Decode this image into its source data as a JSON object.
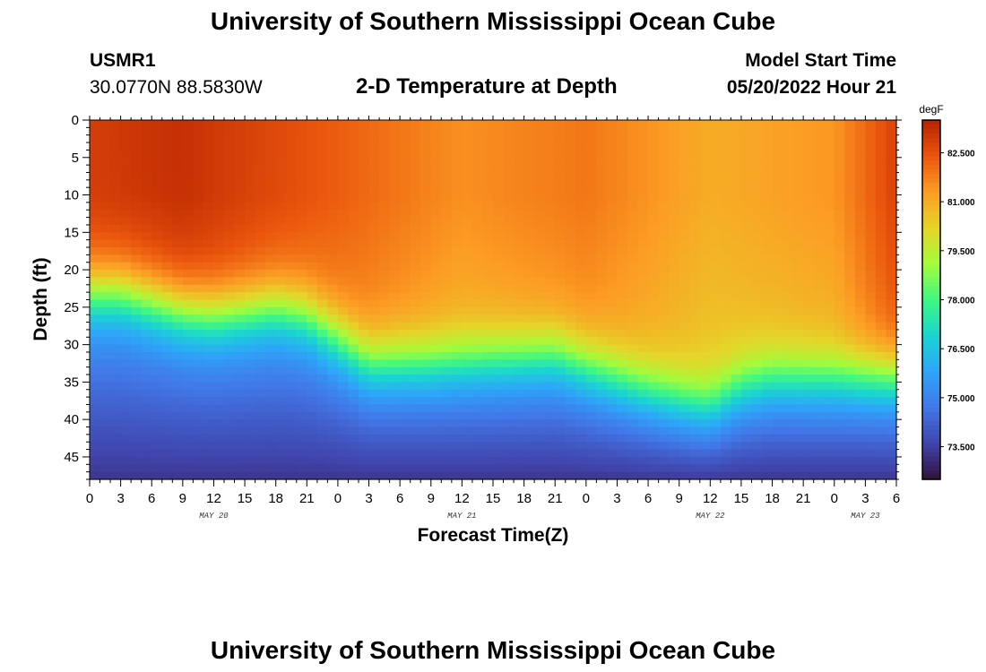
{
  "header": {
    "title": "University of Southern Mississippi Ocean Cube",
    "station_id": "USMR1",
    "station_coords": "30.0770N  88.5830W",
    "plot_title": "2-D Temperature at Depth",
    "model_start_label": "Model Start Time",
    "model_start_value": "05/20/2022 Hour 21"
  },
  "footer": {
    "title": "University of Southern Mississippi Ocean Cube"
  },
  "chart_data": {
    "type": "heatmap",
    "title": "2-D Temperature at Depth",
    "xlabel": "Forecast Time(Z)",
    "ylabel": "Depth (ft)",
    "x_range_hours": [
      0,
      78
    ],
    "y_range_ft": [
      0,
      48
    ],
    "x_ticks": [
      {
        "hour": 0,
        "label": "0"
      },
      {
        "hour": 3,
        "label": "3"
      },
      {
        "hour": 6,
        "label": "6"
      },
      {
        "hour": 9,
        "label": "9"
      },
      {
        "hour": 12,
        "label": "12"
      },
      {
        "hour": 15,
        "label": "15"
      },
      {
        "hour": 18,
        "label": "18"
      },
      {
        "hour": 21,
        "label": "21"
      },
      {
        "hour": 24,
        "label": "0"
      },
      {
        "hour": 27,
        "label": "3"
      },
      {
        "hour": 30,
        "label": "6"
      },
      {
        "hour": 33,
        "label": "9"
      },
      {
        "hour": 36,
        "label": "12"
      },
      {
        "hour": 39,
        "label": "15"
      },
      {
        "hour": 42,
        "label": "18"
      },
      {
        "hour": 45,
        "label": "21"
      },
      {
        "hour": 48,
        "label": "0"
      },
      {
        "hour": 51,
        "label": "3"
      },
      {
        "hour": 54,
        "label": "6"
      },
      {
        "hour": 57,
        "label": "9"
      },
      {
        "hour": 60,
        "label": "12"
      },
      {
        "hour": 63,
        "label": "15"
      },
      {
        "hour": 66,
        "label": "18"
      },
      {
        "hour": 69,
        "label": "21"
      },
      {
        "hour": 72,
        "label": "0"
      },
      {
        "hour": 75,
        "label": "3"
      },
      {
        "hour": 78,
        "label": "6"
      }
    ],
    "date_labels": [
      {
        "hour": 12,
        "label": "MAY 20"
      },
      {
        "hour": 36,
        "label": "MAY 21"
      },
      {
        "hour": 60,
        "label": "MAY 22"
      },
      {
        "hour": 75,
        "label": "MAY 23"
      }
    ],
    "y_ticks": [
      0,
      5,
      10,
      15,
      20,
      25,
      30,
      35,
      40,
      45
    ],
    "colorbar": {
      "unit": "degF",
      "range": [
        72.5,
        83.5
      ],
      "ticks": [
        "82.500",
        "81.000",
        "79.500",
        "78.000",
        "76.500",
        "75.000",
        "73.500"
      ]
    },
    "thermocline_depth_ft": [
      {
        "hour": 0,
        "depth": 23
      },
      {
        "hour": 3,
        "depth": 23
      },
      {
        "hour": 9,
        "depth": 25.5
      },
      {
        "hour": 12,
        "depth": 26
      },
      {
        "hour": 18,
        "depth": 25
      },
      {
        "hour": 21,
        "depth": 26
      },
      {
        "hour": 24,
        "depth": 29
      },
      {
        "hour": 27,
        "depth": 32
      },
      {
        "hour": 33,
        "depth": 32
      },
      {
        "hour": 39,
        "depth": 31.5
      },
      {
        "hour": 45,
        "depth": 31
      },
      {
        "hour": 48,
        "depth": 32.5
      },
      {
        "hour": 54,
        "depth": 35.5
      },
      {
        "hour": 58,
        "depth": 37
      },
      {
        "hour": 60,
        "depth": 37.5
      },
      {
        "hour": 63,
        "depth": 35
      },
      {
        "hour": 66,
        "depth": 34
      },
      {
        "hour": 78,
        "depth": 34
      }
    ],
    "surface_temp_degF": [
      {
        "hour": 0,
        "temp": 82.9
      },
      {
        "hour": 9,
        "temp": 83.2
      },
      {
        "hour": 12,
        "temp": 83.0
      },
      {
        "hour": 24,
        "temp": 82.3
      },
      {
        "hour": 36,
        "temp": 81.5
      },
      {
        "hour": 48,
        "temp": 81.9
      },
      {
        "hour": 60,
        "temp": 81.0
      },
      {
        "hour": 72,
        "temp": 81.4
      },
      {
        "hour": 78,
        "temp": 82.8
      }
    ],
    "bottom_temp_degF": 73.3
  }
}
